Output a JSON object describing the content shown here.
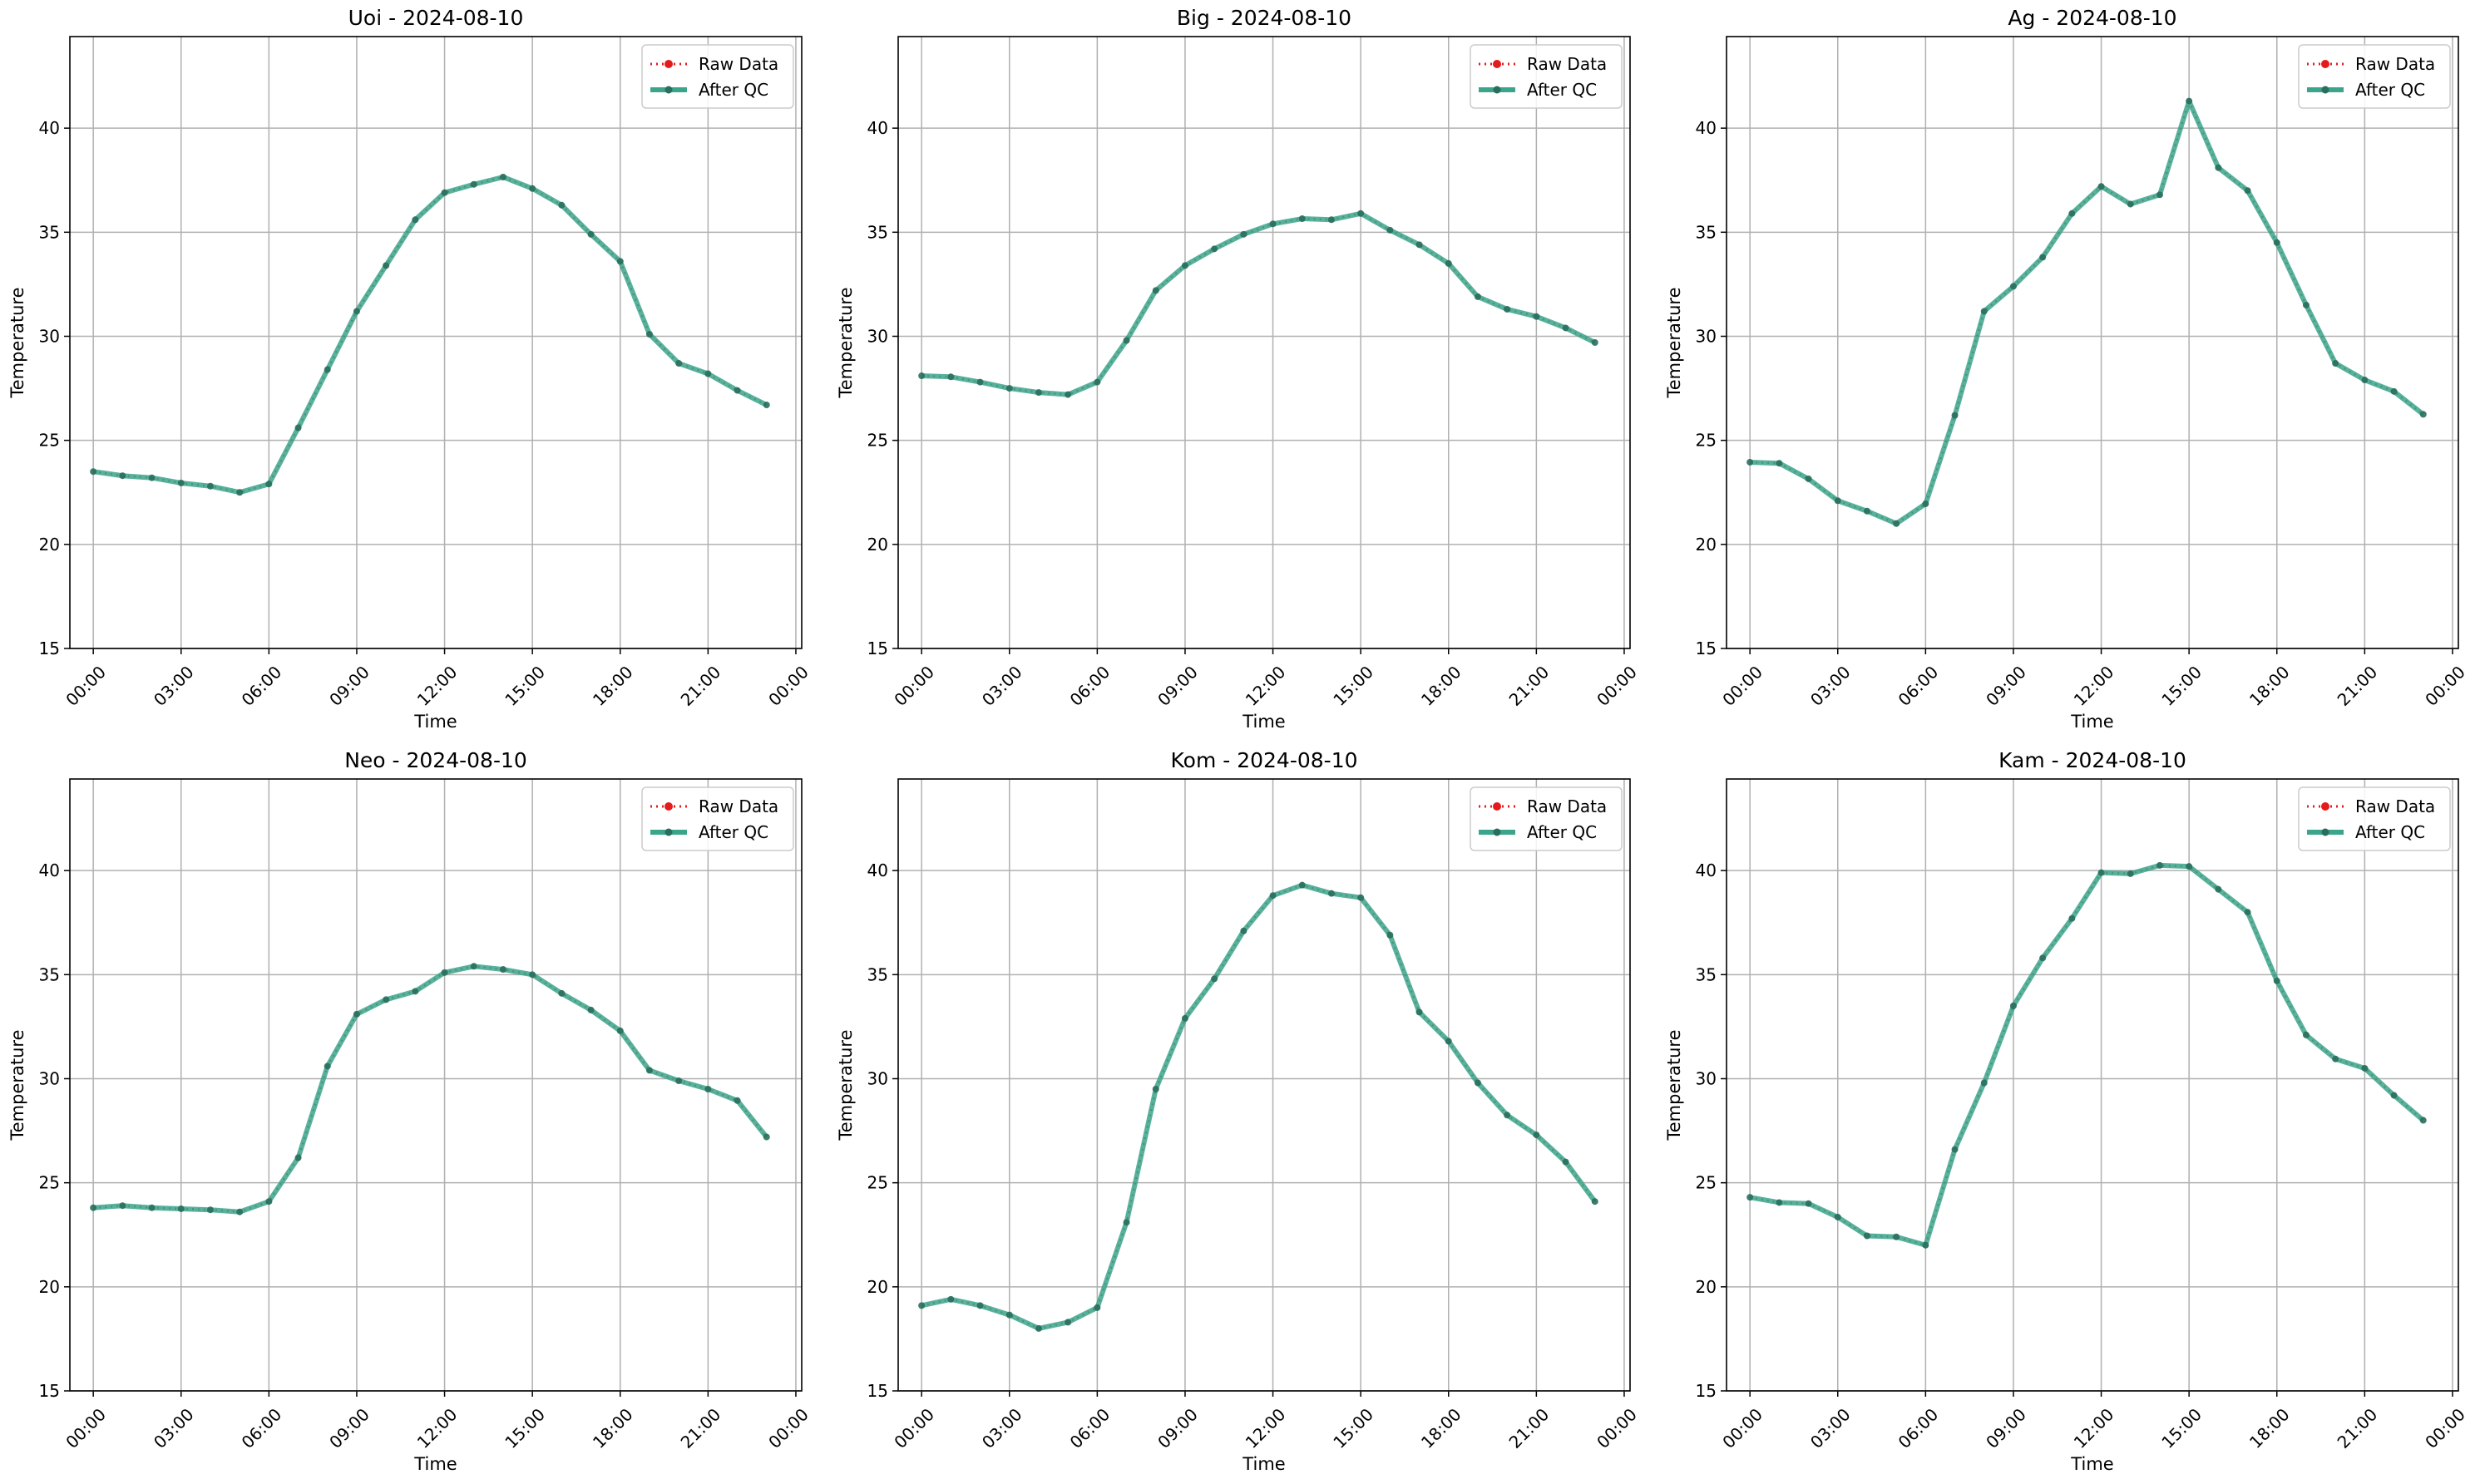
{
  "legend": {
    "raw_label": "Raw Data",
    "qc_label": "After QC",
    "placement": "upper right"
  },
  "colors": {
    "raw": "#e41a1c",
    "qc": "#3aa58b",
    "marker": "#2a6e5d",
    "grid": "#b0b0b0"
  },
  "chart_data": [
    {
      "type": "line",
      "title": "Uoi - 2024-08-10",
      "xlabel": "Time",
      "ylabel": "Temperature",
      "ylim": [
        15,
        44.4
      ],
      "xlim": [
        -0.8,
        24.2
      ],
      "grid": true,
      "xticks": [
        "00:00",
        "03:00",
        "06:00",
        "09:00",
        "12:00",
        "15:00",
        "18:00",
        "21:00",
        "00:00"
      ],
      "yticks": [
        15,
        20,
        25,
        30,
        35,
        40
      ],
      "x": [
        0,
        1,
        2,
        3,
        4,
        5,
        6,
        7,
        8,
        9,
        10,
        11,
        12,
        13,
        14,
        15,
        16,
        17,
        18,
        19,
        20,
        21,
        22,
        23
      ],
      "series": [
        {
          "name": "Raw Data",
          "values": [
            23.5,
            23.3,
            23.2,
            22.95,
            22.8,
            22.5,
            22.9,
            25.6,
            28.4,
            31.2,
            33.4,
            35.6,
            36.9,
            37.3,
            37.65,
            37.1,
            36.3,
            34.9,
            33.6,
            30.1,
            28.7,
            28.2,
            27.4,
            26.7
          ]
        },
        {
          "name": "After QC",
          "values": [
            23.5,
            23.3,
            23.2,
            22.95,
            22.8,
            22.5,
            22.9,
            25.6,
            28.4,
            31.2,
            33.4,
            35.6,
            36.9,
            37.3,
            37.65,
            37.1,
            36.3,
            34.9,
            33.6,
            30.1,
            28.7,
            28.2,
            27.4,
            26.7
          ]
        }
      ]
    },
    {
      "type": "line",
      "title": "Big - 2024-08-10",
      "xlabel": "Time",
      "ylabel": "Temperature",
      "ylim": [
        15,
        44.4
      ],
      "xlim": [
        -0.8,
        24.2
      ],
      "grid": true,
      "xticks": [
        "00:00",
        "03:00",
        "06:00",
        "09:00",
        "12:00",
        "15:00",
        "18:00",
        "21:00",
        "00:00"
      ],
      "yticks": [
        15,
        20,
        25,
        30,
        35,
        40
      ],
      "x": [
        0,
        1,
        2,
        3,
        4,
        5,
        6,
        7,
        8,
        9,
        10,
        11,
        12,
        13,
        14,
        15,
        16,
        17,
        18,
        19,
        20,
        21,
        22,
        23
      ],
      "series": [
        {
          "name": "Raw Data",
          "values": [
            28.1,
            28.05,
            27.8,
            27.5,
            27.3,
            27.2,
            27.8,
            29.8,
            32.2,
            33.4,
            34.2,
            34.9,
            35.4,
            35.65,
            35.6,
            35.9,
            35.1,
            34.4,
            33.5,
            31.9,
            31.3,
            30.95,
            30.4,
            29.7
          ]
        },
        {
          "name": "After QC",
          "values": [
            28.1,
            28.05,
            27.8,
            27.5,
            27.3,
            27.2,
            27.8,
            29.8,
            32.2,
            33.4,
            34.2,
            34.9,
            35.4,
            35.65,
            35.6,
            35.9,
            35.1,
            34.4,
            33.5,
            31.9,
            31.3,
            30.95,
            30.4,
            29.7
          ]
        }
      ]
    },
    {
      "type": "line",
      "title": "Ag - 2024-08-10",
      "xlabel": "Time",
      "ylabel": "Temperature",
      "ylim": [
        15,
        44.4
      ],
      "xlim": [
        -0.8,
        24.2
      ],
      "grid": true,
      "xticks": [
        "00:00",
        "03:00",
        "06:00",
        "09:00",
        "12:00",
        "15:00",
        "18:00",
        "21:00",
        "00:00"
      ],
      "yticks": [
        15,
        20,
        25,
        30,
        35,
        40
      ],
      "x": [
        0,
        1,
        2,
        3,
        4,
        5,
        6,
        7,
        8,
        9,
        10,
        11,
        12,
        13,
        14,
        15,
        16,
        17,
        18,
        19,
        20,
        21,
        22,
        23
      ],
      "series": [
        {
          "name": "Raw Data",
          "values": [
            23.95,
            23.9,
            23.15,
            22.1,
            21.6,
            21.0,
            21.95,
            26.2,
            31.2,
            32.4,
            33.8,
            35.9,
            37.2,
            36.35,
            36.8,
            41.3,
            38.1,
            37.0,
            34.5,
            31.5,
            28.7,
            27.9,
            27.35,
            26.25
          ]
        },
        {
          "name": "After QC",
          "values": [
            23.95,
            23.9,
            23.15,
            22.1,
            21.6,
            21.0,
            21.95,
            26.2,
            31.2,
            32.4,
            33.8,
            35.9,
            37.2,
            36.35,
            36.8,
            41.3,
            38.1,
            37.0,
            34.5,
            31.5,
            28.7,
            27.9,
            27.35,
            26.25
          ]
        }
      ]
    },
    {
      "type": "line",
      "title": "Neo - 2024-08-10",
      "xlabel": "Time",
      "ylabel": "Temperature",
      "ylim": [
        15,
        44.4
      ],
      "xlim": [
        -0.8,
        24.2
      ],
      "grid": true,
      "xticks": [
        "00:00",
        "03:00",
        "06:00",
        "09:00",
        "12:00",
        "15:00",
        "18:00",
        "21:00",
        "00:00"
      ],
      "yticks": [
        15,
        20,
        25,
        30,
        35,
        40
      ],
      "x": [
        0,
        1,
        2,
        3,
        4,
        5,
        6,
        7,
        8,
        9,
        10,
        11,
        12,
        13,
        14,
        15,
        16,
        17,
        18,
        19,
        20,
        21,
        22,
        23
      ],
      "series": [
        {
          "name": "Raw Data",
          "values": [
            23.8,
            23.9,
            23.8,
            23.75,
            23.7,
            23.6,
            24.1,
            26.2,
            30.6,
            33.1,
            33.8,
            34.2,
            35.1,
            35.4,
            35.25,
            35.0,
            34.1,
            33.3,
            32.3,
            30.4,
            29.9,
            29.5,
            28.95,
            27.2
          ]
        },
        {
          "name": "After QC",
          "values": [
            23.8,
            23.9,
            23.8,
            23.75,
            23.7,
            23.6,
            24.1,
            26.2,
            30.6,
            33.1,
            33.8,
            34.2,
            35.1,
            35.4,
            35.25,
            35.0,
            34.1,
            33.3,
            32.3,
            30.4,
            29.9,
            29.5,
            28.95,
            27.2
          ]
        }
      ]
    },
    {
      "type": "line",
      "title": "Kom - 2024-08-10",
      "xlabel": "Time",
      "ylabel": "Temperature",
      "ylim": [
        15,
        44.4
      ],
      "xlim": [
        -0.8,
        24.2
      ],
      "grid": true,
      "xticks": [
        "00:00",
        "03:00",
        "06:00",
        "09:00",
        "12:00",
        "15:00",
        "18:00",
        "21:00",
        "00:00"
      ],
      "yticks": [
        15,
        20,
        25,
        30,
        35,
        40
      ],
      "x": [
        0,
        1,
        2,
        3,
        4,
        5,
        6,
        7,
        8,
        9,
        10,
        11,
        12,
        13,
        14,
        15,
        16,
        17,
        18,
        19,
        20,
        21,
        22,
        23
      ],
      "series": [
        {
          "name": "Raw Data",
          "values": [
            19.1,
            19.4,
            19.1,
            18.65,
            18.0,
            18.3,
            19.0,
            23.1,
            29.5,
            32.9,
            34.8,
            37.1,
            38.8,
            39.3,
            38.9,
            38.7,
            36.9,
            33.2,
            31.8,
            29.8,
            28.25,
            27.3,
            26.0,
            24.1
          ]
        },
        {
          "name": "After QC",
          "values": [
            19.1,
            19.4,
            19.1,
            18.65,
            18.0,
            18.3,
            19.0,
            23.1,
            29.5,
            32.9,
            34.8,
            37.1,
            38.8,
            39.3,
            38.9,
            38.7,
            36.9,
            33.2,
            31.8,
            29.8,
            28.25,
            27.3,
            26.0,
            24.1
          ]
        }
      ]
    },
    {
      "type": "line",
      "title": "Kam - 2024-08-10",
      "xlabel": "Time",
      "ylabel": "Temperature",
      "ylim": [
        15,
        44.4
      ],
      "xlim": [
        -0.8,
        24.2
      ],
      "grid": true,
      "xticks": [
        "00:00",
        "03:00",
        "06:00",
        "09:00",
        "12:00",
        "15:00",
        "18:00",
        "21:00",
        "00:00"
      ],
      "yticks": [
        15,
        20,
        25,
        30,
        35,
        40
      ],
      "x": [
        0,
        1,
        2,
        3,
        4,
        5,
        6,
        7,
        8,
        9,
        10,
        11,
        12,
        13,
        14,
        15,
        16,
        17,
        18,
        19,
        20,
        21,
        22,
        23
      ],
      "series": [
        {
          "name": "Raw Data",
          "values": [
            24.3,
            24.05,
            24.0,
            23.35,
            22.45,
            22.4,
            22.0,
            26.6,
            29.8,
            33.5,
            35.8,
            37.7,
            39.9,
            39.85,
            40.25,
            40.2,
            39.1,
            38.0,
            34.7,
            32.1,
            30.95,
            30.5,
            29.2,
            28.0
          ]
        },
        {
          "name": "After QC",
          "values": [
            24.3,
            24.05,
            24.0,
            23.35,
            22.45,
            22.4,
            22.0,
            26.6,
            29.8,
            33.5,
            35.8,
            37.7,
            39.9,
            39.85,
            40.25,
            40.2,
            39.1,
            38.0,
            34.7,
            32.1,
            30.95,
            30.5,
            29.2,
            28.0
          ]
        }
      ]
    }
  ]
}
